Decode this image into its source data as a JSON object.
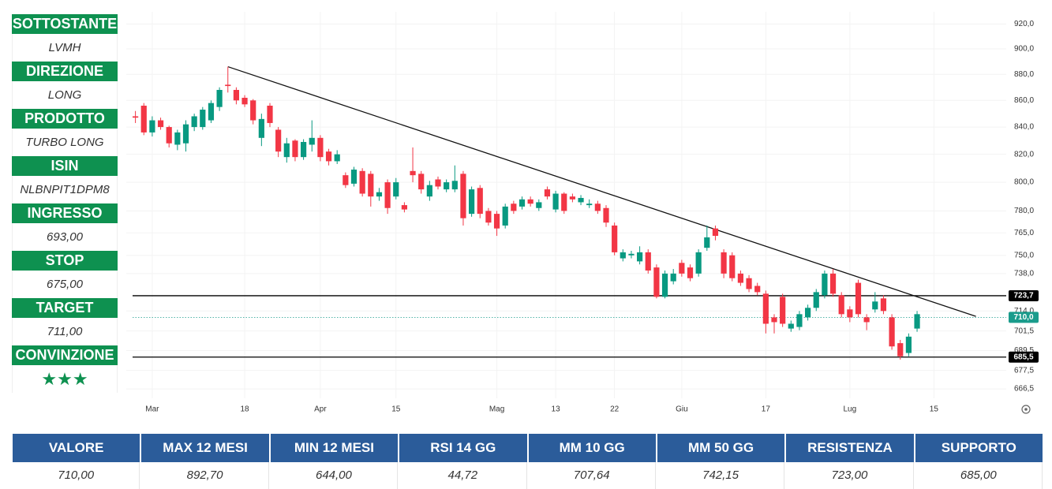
{
  "panel": [
    {
      "label": "SOTTOSTANTE",
      "value": "LVMH"
    },
    {
      "label": "DIREZIONE",
      "value": "LONG"
    },
    {
      "label": "PRODOTTO",
      "value": "TURBO LONG"
    },
    {
      "label": "ISIN",
      "value": "NLBNPIT1DPM8"
    },
    {
      "label": "INGRESSO",
      "value": "693,00"
    },
    {
      "label": "STOP",
      "value": "675,00"
    },
    {
      "label": "TARGET",
      "value": "711,00"
    },
    {
      "label": "CONVINZIONE",
      "value": "★★★"
    }
  ],
  "table": {
    "headers": [
      "VALORE",
      "MAX 12 MESI",
      "MIN 12 MESI",
      "RSI 14 GG",
      "MM 10 GG",
      "MM 50 GG",
      "RESISTENZA",
      "SUPPORTO"
    ],
    "values": [
      "710,00",
      "892,70",
      "644,00",
      "44,72",
      "707,64",
      "742,15",
      "723,00",
      "685,00"
    ]
  },
  "chart_data": {
    "type": "candlestick",
    "up_color": "#089981",
    "down_color": "#f23645",
    "log_scale": true,
    "grid": true,
    "categories": [
      null,
      null,
      "Mar",
      null,
      null,
      null,
      null,
      null,
      null,
      null,
      null,
      null,
      null,
      "18",
      null,
      null,
      null,
      null,
      null,
      null,
      null,
      null,
      "Apr",
      null,
      null,
      null,
      null,
      null,
      null,
      null,
      null,
      "15",
      null,
      null,
      null,
      null,
      null,
      null,
      null,
      null,
      null,
      null,
      null,
      "Mag",
      null,
      null,
      null,
      null,
      null,
      null,
      "13",
      null,
      null,
      null,
      null,
      null,
      null,
      "22",
      null,
      null,
      null,
      null,
      null,
      null,
      null,
      "Giu",
      null,
      null,
      null,
      null,
      null,
      null,
      null,
      null,
      null,
      "17",
      null,
      null,
      null,
      null,
      null,
      null,
      null,
      null,
      null,
      "Lug",
      null,
      null,
      null,
      null,
      null,
      null,
      null,
      null,
      null,
      "15",
      null,
      null,
      null,
      null,
      null,
      null,
      null,
      null
    ],
    "open": [
      848,
      856,
      836,
      845,
      840,
      827,
      828,
      840,
      840,
      845,
      855,
      872,
      868,
      862,
      860,
      832,
      856,
      838,
      818,
      830,
      818,
      827,
      832,
      822,
      815,
      805,
      799,
      808,
      806,
      790,
      800,
      790,
      784,
      808,
      806,
      790,
      802,
      795,
      795,
      806,
      778,
      796,
      780,
      778,
      770,
      785,
      783,
      788,
      782,
      795,
      781,
      792,
      790,
      786,
      784,
      785,
      782,
      770,
      748,
      750,
      746,
      752,
      742,
      723,
      733,
      745,
      742,
      738,
      755,
      768,
      752,
      750,
      738,
      735,
      730,
      725,
      710,
      723,
      703,
      704,
      710,
      716,
      724,
      738,
      724,
      715,
      732,
      710,
      715,
      722,
      710,
      694,
      688,
      703,
      null,
      null,
      null,
      null,
      null,
      null,
      null,
      null,
      null,
      null
    ],
    "high": [
      852,
      858,
      848,
      847,
      841,
      838,
      845,
      850,
      855,
      860,
      870,
      886,
      870,
      864,
      861,
      850,
      858,
      840,
      832,
      831,
      831,
      845,
      834,
      824,
      823,
      807,
      811,
      810,
      808,
      796,
      802,
      803,
      786,
      825,
      808,
      801,
      804,
      802,
      812,
      808,
      797,
      798,
      782,
      780,
      785,
      787,
      790,
      790,
      788,
      797,
      794,
      793,
      792,
      791,
      788,
      787,
      784,
      772,
      754,
      753,
      756,
      754,
      744,
      740,
      741,
      747,
      744,
      754,
      770,
      770,
      754,
      752,
      740,
      737,
      732,
      727,
      712,
      725,
      708,
      714,
      718,
      728,
      740,
      741,
      726,
      717,
      734,
      712,
      726,
      724,
      712,
      696,
      700,
      714,
      null,
      null,
      null,
      null,
      null,
      null,
      null,
      null,
      null,
      null
    ],
    "low": [
      843,
      834,
      833,
      838,
      825,
      823,
      822,
      837,
      838,
      843,
      852,
      866,
      857,
      855,
      842,
      826,
      840,
      818,
      814,
      815,
      816,
      822,
      815,
      812,
      813,
      796,
      797,
      790,
      783,
      787,
      778,
      788,
      779,
      800,
      792,
      787,
      795,
      793,
      793,
      770,
      776,
      775,
      770,
      763,
      768,
      778,
      781,
      783,
      780,
      788,
      779,
      778,
      786,
      784,
      782,
      778,
      769,
      750,
      746,
      748,
      744,
      738,
      722,
      722,
      731,
      736,
      733,
      736,
      753,
      760,
      735,
      733,
      730,
      726,
      724,
      700,
      700,
      704,
      701,
      702,
      708,
      714,
      722,
      723,
      710,
      707,
      710,
      702,
      713,
      712,
      690,
      684,
      686,
      701,
      null,
      null,
      null,
      null,
      null,
      null,
      null,
      null,
      null,
      null
    ],
    "close": [
      847,
      836,
      845,
      840,
      828,
      836,
      842,
      848,
      853,
      858,
      868,
      871,
      860,
      857,
      845,
      846,
      843,
      822,
      828,
      818,
      829,
      832,
      818,
      815,
      820,
      798,
      809,
      792,
      790,
      793,
      782,
      800,
      781,
      805,
      795,
      798,
      797,
      800,
      801,
      775,
      795,
      778,
      772,
      768,
      783,
      780,
      788,
      785,
      786,
      790,
      792,
      780,
      788,
      789,
      785,
      780,
      772,
      752,
      752,
      751,
      752,
      740,
      723,
      738,
      738,
      738,
      735,
      752,
      762,
      763,
      738,
      735,
      732,
      728,
      726,
      706,
      707,
      706,
      706,
      712,
      716,
      726,
      738,
      725,
      712,
      710,
      712,
      707,
      720,
      714,
      692,
      686,
      698,
      712,
      null,
      null,
      null,
      null,
      null,
      null,
      null,
      null,
      null,
      null
    ],
    "trendline": {
      "x": [
        11,
        100
      ],
      "y": [
        886,
        710.6
      ]
    },
    "levels": [
      {
        "value": 723.7,
        "label": "723,7",
        "color": "#000000",
        "style": "solid"
      },
      {
        "value": 710.0,
        "label": "710,0",
        "color": "#1a9c8c",
        "style": "dotted"
      },
      {
        "value": 685.5,
        "label": "685,5",
        "color": "#000000",
        "style": "solid"
      }
    ],
    "ylim": [
      661,
      930
    ],
    "yticks": [
      {
        "value": 920,
        "label": "920,0"
      },
      {
        "value": 900,
        "label": "900,0"
      },
      {
        "value": 880,
        "label": "880,0"
      },
      {
        "value": 860,
        "label": "860,0"
      },
      {
        "value": 840,
        "label": "840,0"
      },
      {
        "value": 820,
        "label": "820,0"
      },
      {
        "value": 800,
        "label": "800,0"
      },
      {
        "value": 780,
        "label": "780,0"
      },
      {
        "value": 765,
        "label": "765,0"
      },
      {
        "value": 750,
        "label": "750,0"
      },
      {
        "value": 738,
        "label": "738,0"
      },
      {
        "value": 714,
        "label": "714,0"
      },
      {
        "value": 701.5,
        "label": "701,5"
      },
      {
        "value": 689.5,
        "label": "689,5"
      },
      {
        "value": 677.5,
        "label": "677,5"
      },
      {
        "value": 666.5,
        "label": "666,5"
      }
    ]
  }
}
